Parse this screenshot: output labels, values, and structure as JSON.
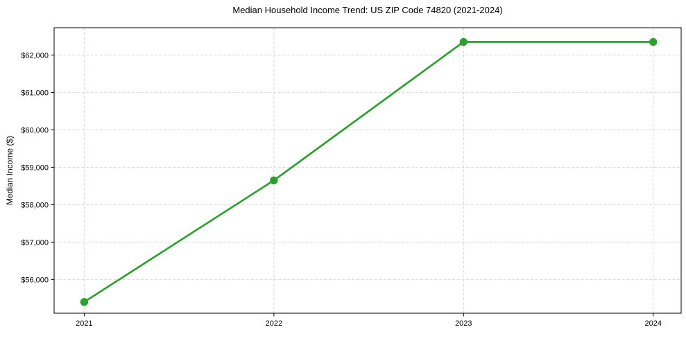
{
  "chart_data": {
    "type": "line",
    "title": "Median Household Income Trend: US ZIP Code 74820 (2021-2024)",
    "xlabel": "",
    "ylabel": "Median Income ($)",
    "categories": [
      "2021",
      "2022",
      "2023",
      "2024"
    ],
    "series": [
      {
        "name": "Median Household Income",
        "values": [
          55400,
          58650,
          62350,
          62350
        ]
      }
    ],
    "ylim": [
      55100,
      62730
    ],
    "ytick_values": [
      56000,
      57000,
      58000,
      59000,
      60000,
      61000,
      62000
    ],
    "ytick_labels": [
      "$56,000",
      "$57,000",
      "$58,000",
      "$59,000",
      "$60,000",
      "$61,000",
      "$62,000"
    ],
    "grid": "dashed",
    "legend_position": "none",
    "marker": "circle",
    "colors": {
      "line": "#2ca02c",
      "marker": "#2ca02c",
      "grid": "#d7d7d7",
      "axis": "#000000",
      "background": "#ffffff",
      "text": "#000000"
    }
  }
}
